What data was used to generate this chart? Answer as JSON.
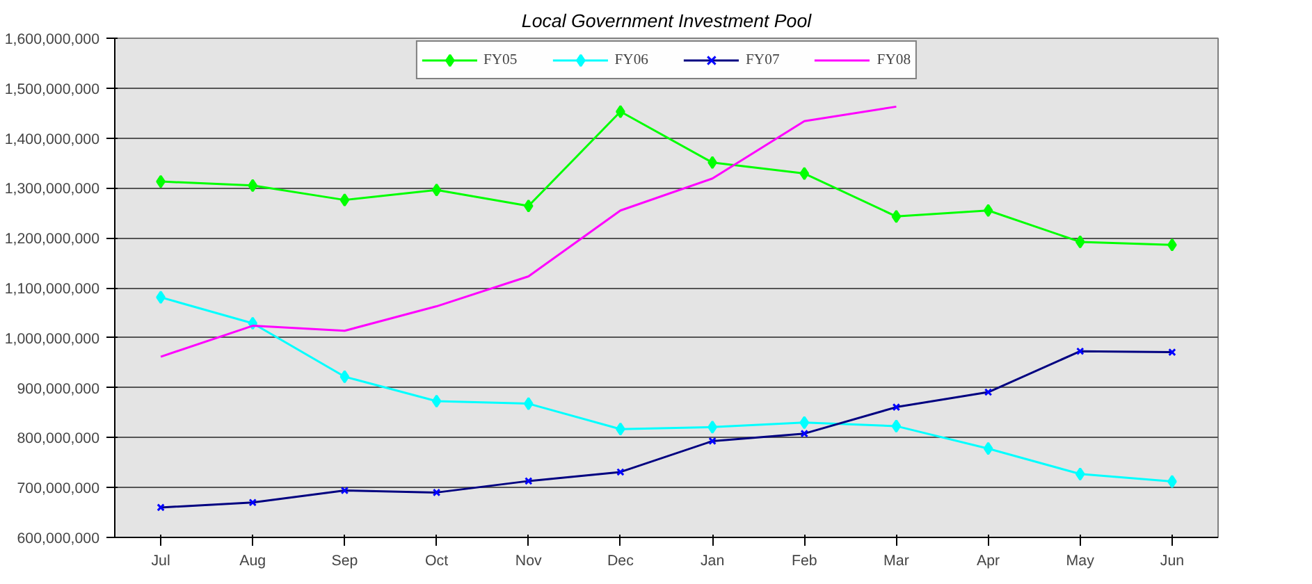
{
  "chart_data": {
    "type": "line",
    "title": "Local Government Investment Pool",
    "categories": [
      "Jul",
      "Aug",
      "Sep",
      "Oct",
      "Nov",
      "Dec",
      "Jan",
      "Feb",
      "Mar",
      "Apr",
      "May",
      "Jun"
    ],
    "series": [
      {
        "name": "FY05",
        "color": "#00ff00",
        "marker": "diamond",
        "values": [
          1313000000,
          1305000000,
          1276000000,
          1296000000,
          1264000000,
          1453000000,
          1351000000,
          1329000000,
          1243000000,
          1255000000,
          1192000000,
          1186000000
        ]
      },
      {
        "name": "FY06",
        "color": "#00ffff",
        "marker": "diamond",
        "values": [
          1081000000,
          1029000000,
          922000000,
          873000000,
          868000000,
          817000000,
          821000000,
          830000000,
          823000000,
          778000000,
          727000000,
          712000000
        ]
      },
      {
        "name": "FY07",
        "color": "#000080",
        "marker": "cross",
        "values": [
          660000000,
          670000000,
          694000000,
          690000000,
          713000000,
          731000000,
          793000000,
          808000000,
          861000000,
          891000000,
          973000000,
          971000000
        ]
      },
      {
        "name": "FY08",
        "color": "#ff00ff",
        "marker": "none",
        "values": [
          962000000,
          1024000000,
          1014000000,
          1063000000,
          1123000000,
          1255000000,
          1319000000,
          1434000000,
          1463000000,
          null,
          null,
          null
        ]
      }
    ],
    "ylim": [
      600000000,
      1600000000
    ],
    "yticks": [
      {
        "value": 600000000,
        "label": "600,000,000"
      },
      {
        "value": 700000000,
        "label": "700,000,000"
      },
      {
        "value": 800000000,
        "label": "800,000,000"
      },
      {
        "value": 900000000,
        "label": "900,000,000"
      },
      {
        "value": 1000000000,
        "label": "1,000,000,000"
      },
      {
        "value": 1100000000,
        "label": "1,100,000,000"
      },
      {
        "value": 1200000000,
        "label": "1,200,000,000"
      },
      {
        "value": 1300000000,
        "label": "1,300,000,000"
      },
      {
        "value": 1400000000,
        "label": "1,400,000,000"
      },
      {
        "value": 1500000000,
        "label": "1,500,000,000"
      },
      {
        "value": 1600000000,
        "label": "1,600,000,000"
      }
    ],
    "grid": "y",
    "legend": "top",
    "line_style": "solid"
  }
}
